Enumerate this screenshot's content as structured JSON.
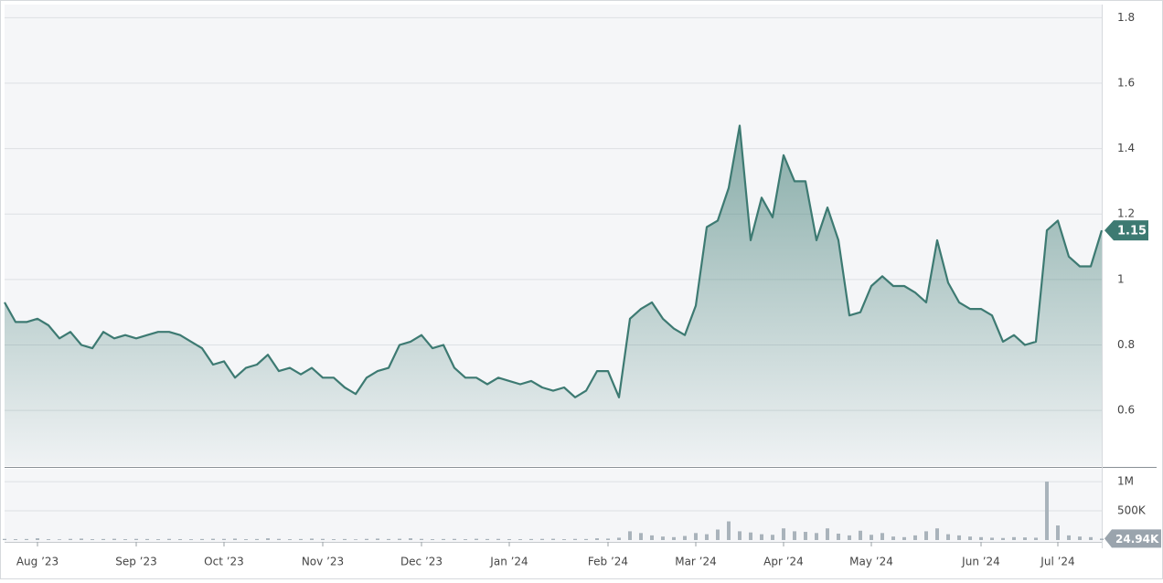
{
  "chart_data": {
    "type": "line",
    "categories": [
      null,
      null,
      null,
      "Aug ’23",
      null,
      null,
      null,
      null,
      null,
      null,
      null,
      null,
      "Sep ’23",
      null,
      null,
      null,
      null,
      null,
      null,
      null,
      "Oct ’23",
      null,
      null,
      null,
      null,
      null,
      null,
      null,
      null,
      "Nov ’23",
      null,
      null,
      null,
      null,
      null,
      null,
      null,
      null,
      "Dec ’23",
      null,
      null,
      null,
      null,
      null,
      null,
      null,
      "Jan ’24",
      null,
      null,
      null,
      null,
      null,
      null,
      null,
      null,
      "Feb ’24",
      null,
      null,
      null,
      null,
      null,
      null,
      null,
      "Mar ’24",
      null,
      null,
      null,
      null,
      null,
      null,
      null,
      "Apr ’24",
      null,
      null,
      null,
      null,
      null,
      null,
      null,
      "May ’24",
      null,
      null,
      null,
      null,
      null,
      null,
      null,
      null,
      null,
      "Jun ’24",
      null,
      null,
      null,
      null,
      null,
      null,
      "Jul ’24",
      null,
      null,
      null,
      null
    ],
    "series": [
      {
        "color": "#3d7a72",
        "values": [
          0.93,
          0.87,
          0.87,
          0.88,
          0.86,
          0.82,
          0.84,
          0.8,
          0.79,
          0.84,
          0.82,
          0.83,
          0.82,
          0.83,
          0.84,
          0.84,
          0.83,
          0.81,
          0.79,
          0.74,
          0.75,
          0.7,
          0.73,
          0.74,
          0.77,
          0.72,
          0.73,
          0.71,
          0.73,
          0.7,
          0.7,
          0.67,
          0.65,
          0.7,
          0.72,
          0.73,
          0.8,
          0.81,
          0.83,
          0.79,
          0.8,
          0.73,
          0.7,
          0.7,
          0.68,
          0.7,
          0.69,
          0.68,
          0.69,
          0.67,
          0.66,
          0.67,
          0.64,
          0.66,
          0.72,
          0.72,
          0.64,
          0.88,
          0.91,
          0.93,
          0.88,
          0.85,
          0.83,
          0.92,
          1.16,
          1.18,
          1.28,
          1.47,
          1.12,
          1.25,
          1.19,
          1.38,
          1.3,
          1.3,
          1.12,
          1.22,
          1.12,
          0.89,
          0.9,
          0.98,
          1.01,
          0.98,
          0.98,
          0.96,
          0.93,
          1.12,
          0.99,
          0.93,
          0.91,
          0.91,
          0.89,
          0.81,
          0.83,
          0.8,
          0.81,
          1.15,
          1.18,
          1.07,
          1.04,
          1.04,
          1.15
        ]
      },
      {
        "type": "bar",
        "axis": "y2",
        "color": "#a9b3bb",
        "last_value_label": "24.94K",
        "values": [
          20000,
          15000,
          18000,
          30000,
          15000,
          12000,
          20000,
          25000,
          15000,
          18000,
          22000,
          15000,
          20000,
          18000,
          15000,
          20000,
          16000,
          14000,
          18000,
          22000,
          20000,
          25000,
          15000,
          18000,
          30000,
          20000,
          15000,
          18000,
          25000,
          20000,
          15000,
          18000,
          12000,
          20000,
          25000,
          18000,
          22000,
          30000,
          20000,
          15000,
          18000,
          20000,
          15000,
          22000,
          18000,
          20000,
          16000,
          15000,
          18000,
          20000,
          22000,
          15000,
          20000,
          18000,
          30000,
          25000,
          40000,
          150000,
          120000,
          80000,
          60000,
          50000,
          70000,
          120000,
          100000,
          180000,
          320000,
          150000,
          130000,
          100000,
          90000,
          200000,
          150000,
          140000,
          120000,
          200000,
          110000,
          80000,
          160000,
          90000,
          120000,
          60000,
          50000,
          80000,
          150000,
          200000,
          100000,
          80000,
          60000,
          50000,
          40000,
          35000,
          50000,
          45000,
          40000,
          1000000,
          250000,
          80000,
          60000,
          50000,
          24940
        ]
      }
    ],
    "ylim": [
      0.43,
      1.84
    ],
    "yticks": [
      0.6,
      0.8,
      1,
      1.2,
      1.4,
      1.6,
      1.8
    ],
    "y2lim": [
      0,
      1220000
    ],
    "y2ticks": [
      {
        "value": 500000,
        "label": "500K"
      },
      {
        "value": 1000000,
        "label": "1M"
      }
    ],
    "grid": true
  }
}
